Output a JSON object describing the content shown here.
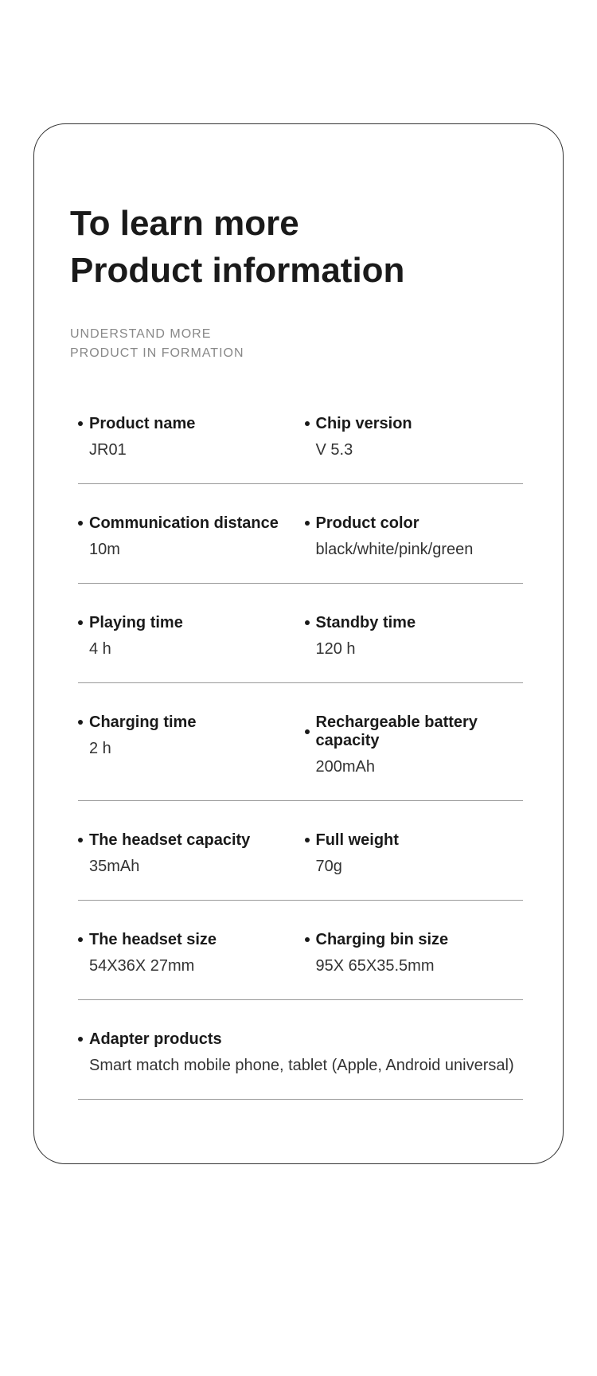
{
  "title_line1": "To learn more",
  "title_line2": "Product information",
  "subtitle_line1": "UNDERSTAND MORE",
  "subtitle_line2": "PRODUCT IN FORMATION",
  "specs": {
    "product_name": {
      "label": "Product name",
      "value": "JR01"
    },
    "chip_version": {
      "label": "Chip version",
      "value": "V 5.3"
    },
    "comm_distance": {
      "label": "Communication distance",
      "value": "10m"
    },
    "product_color": {
      "label": "Product color",
      "value": "black/white/pink/green"
    },
    "playing_time": {
      "label": "Playing time",
      "value": "4 h"
    },
    "standby_time": {
      "label": "Standby time",
      "value": "120 h"
    },
    "charging_time": {
      "label": "Charging time",
      "value": "2 h"
    },
    "battery_capacity": {
      "label": "Rechargeable battery capacity",
      "value": "200mAh"
    },
    "headset_capacity": {
      "label": "The headset capacity",
      "value": "35mAh"
    },
    "full_weight": {
      "label": "Full weight",
      "value": "70g"
    },
    "headset_size": {
      "label": "The headset size",
      "value": "54X36X 27mm"
    },
    "charging_bin_size": {
      "label": "Charging bin size",
      "value": "95X 65X35.5mm"
    },
    "adapter": {
      "label": "Adapter products",
      "value": "Smart match mobile phone, tablet (Apple, Android universal)"
    }
  },
  "styling": {
    "card_border_color": "#333333",
    "card_border_radius": 40,
    "title_fontsize": 44,
    "title_color": "#1a1a1a",
    "subtitle_fontsize": 16,
    "subtitle_color": "#888888",
    "label_fontsize": 20,
    "label_weight": 700,
    "value_fontsize": 20,
    "value_color": "#333333",
    "divider_color": "#999999",
    "bullet_size": 6,
    "background_color": "#ffffff"
  }
}
